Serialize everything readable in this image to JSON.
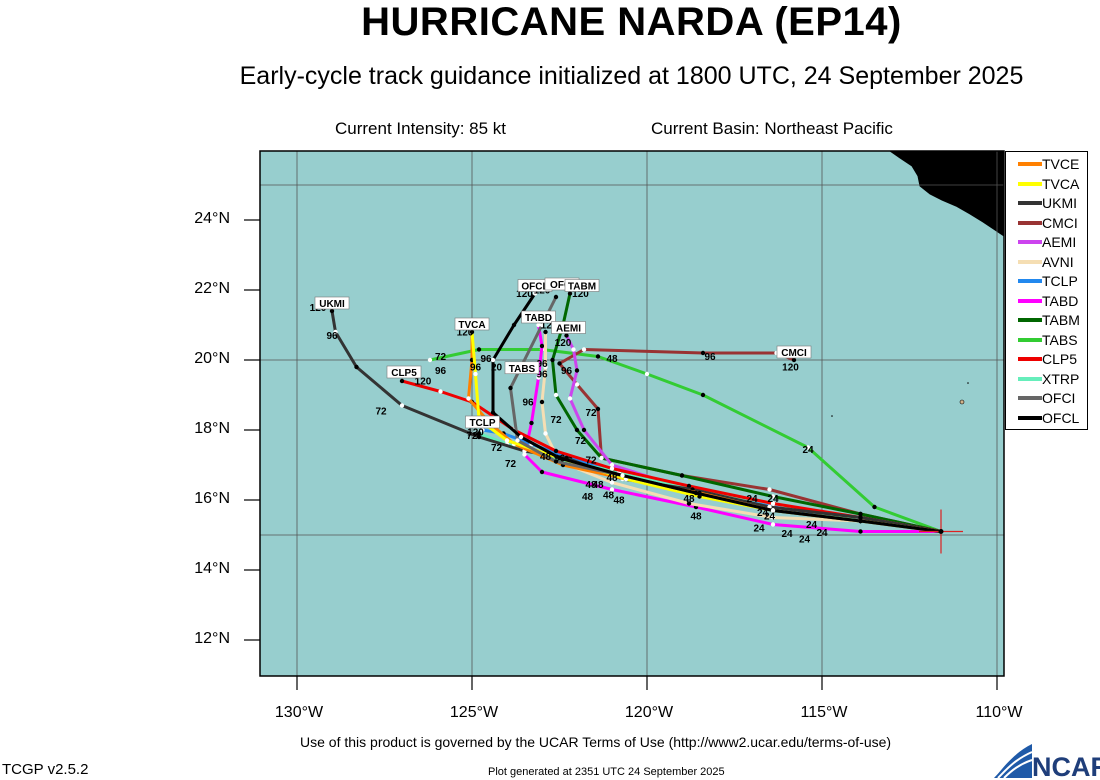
{
  "header": {
    "title": "HURRICANE NARDA (EP14)",
    "subtitle": "Early-cycle track guidance initialized at 1800 UTC, 24 September 2025",
    "intensity": "Current Intensity: 85 kt",
    "basin": "Current Basin: Northeast Pacific"
  },
  "axes": {
    "lat_labels": [
      "24°N",
      "22°N",
      "20°N",
      "18°N",
      "16°N",
      "14°N",
      "12°N"
    ],
    "lon_labels": [
      "130°W",
      "125°W",
      "120°W",
      "115°W",
      "110°W"
    ]
  },
  "colors": {
    "ocean": "#97cece",
    "land": "#d2b48c",
    "TVCE": "#ff8000",
    "TVCA": "#ffff00",
    "UKMI": "#333333",
    "CMCI": "#993333",
    "AEMI": "#cc44ee",
    "AVNI": "#f5deb3",
    "TCLP": "#2288ee",
    "TABD": "#ff00ff",
    "TABM": "#006600",
    "TABS": "#33cc33",
    "CLP5": "#ee0000",
    "XTRP": "#66eebb",
    "OFCI": "#666666",
    "OFCL": "#000000"
  },
  "legend": [
    "TVCE",
    "TVCA",
    "UKMI",
    "CMCI",
    "AEMI",
    "AVNI",
    "TCLP",
    "TABD",
    "TABM",
    "TABS",
    "CLP5",
    "XTRP",
    "OFCI",
    "OFCL"
  ],
  "storm_position": {
    "lat": 15.1,
    "lon": -111.6
  },
  "end_labels": [
    {
      "text": "UKMI",
      "model": "UKMI"
    },
    {
      "text": "TVCA",
      "model": "TVCA"
    },
    {
      "text": "OFCL",
      "model": "OFCL"
    },
    {
      "text": "OFCI",
      "model": "OFCI"
    },
    {
      "text": "TABM",
      "model": "TABM"
    },
    {
      "text": "TABD",
      "model": "TABD"
    },
    {
      "text": "AEMI",
      "model": "AEMI"
    },
    {
      "text": "TABS",
      "model": "TABS"
    },
    {
      "text": "CMCI",
      "model": "CMCI"
    },
    {
      "text": "CLP5",
      "model": "CLP5"
    },
    {
      "text": "TCLP",
      "model": "TCLP"
    }
  ],
  "tracks": [
    {
      "model": "TABS",
      "points": [
        [
          -111.6,
          15.1
        ],
        [
          -113.5,
          15.8
        ],
        [
          -115.4,
          17.5
        ],
        [
          -118.4,
          19.0
        ],
        [
          -120.0,
          19.6
        ],
        [
          -121.4,
          20.1
        ],
        [
          -123.0,
          20.3
        ],
        [
          -124.8,
          20.3
        ],
        [
          -126.2,
          20.0
        ]
      ]
    },
    {
      "model": "CMCI",
      "points": [
        [
          -111.6,
          15.1
        ],
        [
          -113.9,
          15.6
        ],
        [
          -116.5,
          16.3
        ],
        [
          -119.0,
          16.7
        ],
        [
          -121.3,
          17.2
        ],
        [
          -121.4,
          18.6
        ],
        [
          -122.0,
          19.3
        ],
        [
          -122.5,
          19.9
        ],
        [
          -121.8,
          20.3
        ],
        [
          -118.4,
          20.2
        ],
        [
          -116.3,
          20.2
        ],
        [
          -115.8,
          20.0
        ]
      ]
    },
    {
      "model": "TABM",
      "points": [
        [
          -111.6,
          15.1
        ],
        [
          -113.9,
          15.6
        ],
        [
          -116.4,
          16.1
        ],
        [
          -119.0,
          16.7
        ],
        [
          -121.3,
          17.2
        ],
        [
          -122.0,
          18.0
        ],
        [
          -122.6,
          19.0
        ],
        [
          -122.7,
          20.0
        ],
        [
          -122.4,
          21.0
        ],
        [
          -122.2,
          21.9
        ]
      ]
    },
    {
      "model": "AEMI",
      "points": [
        [
          -111.6,
          15.1
        ],
        [
          -113.9,
          15.5
        ],
        [
          -116.4,
          15.8
        ],
        [
          -118.8,
          16.3
        ],
        [
          -121.0,
          17.0
        ],
        [
          -121.8,
          18.0
        ],
        [
          -122.2,
          18.9
        ],
        [
          -122.0,
          19.7
        ],
        [
          -122.1,
          20.3
        ],
        [
          -122.3,
          20.7
        ]
      ]
    },
    {
      "model": "TABD",
      "points": [
        [
          -111.6,
          15.1
        ],
        [
          -113.9,
          15.1
        ],
        [
          -116.4,
          15.3
        ],
        [
          -118.6,
          15.8
        ],
        [
          -121.0,
          16.3
        ],
        [
          -123.0,
          16.8
        ],
        [
          -123.5,
          17.3
        ],
        [
          -123.3,
          18.2
        ],
        [
          -123.1,
          19.5
        ],
        [
          -123.0,
          20.4
        ],
        [
          -123.1,
          21.0
        ]
      ]
    },
    {
      "model": "AVNI",
      "points": [
        [
          -111.6,
          15.1
        ],
        [
          -113.9,
          15.4
        ],
        [
          -116.4,
          15.5
        ],
        [
          -118.8,
          15.9
        ],
        [
          -121.0,
          16.5
        ],
        [
          -122.5,
          17.1
        ],
        [
          -122.9,
          17.9
        ],
        [
          -123.0,
          18.8
        ],
        [
          -122.9,
          19.8
        ],
        [
          -122.9,
          20.8
        ]
      ]
    },
    {
      "model": "TCLP",
      "points": [
        [
          -111.6,
          15.1
        ],
        [
          -113.9,
          15.4
        ],
        [
          -116.4,
          15.8
        ],
        [
          -118.7,
          16.3
        ],
        [
          -120.6,
          16.7
        ],
        [
          -122.2,
          17.2
        ],
        [
          -123.3,
          17.6
        ],
        [
          -124.1,
          17.9
        ],
        [
          -124.7,
          18.0
        ]
      ]
    },
    {
      "model": "XTRP",
      "points": [
        [
          -111.6,
          15.1
        ],
        [
          -113.9,
          15.4
        ],
        [
          -116.4,
          15.9
        ],
        [
          -118.6,
          16.3
        ],
        [
          -120.8,
          16.8
        ],
        [
          -122.8,
          17.2
        ],
        [
          -124.0,
          17.6
        ],
        [
          -124.8,
          17.9
        ]
      ]
    },
    {
      "model": "CLP5",
      "points": [
        [
          -111.6,
          15.1
        ],
        [
          -113.9,
          15.5
        ],
        [
          -116.4,
          15.9
        ],
        [
          -118.8,
          16.4
        ],
        [
          -121.0,
          16.9
        ],
        [
          -122.6,
          17.4
        ],
        [
          -123.8,
          18.0
        ],
        [
          -125.0,
          18.8
        ],
        [
          -125.9,
          19.1
        ],
        [
          -127.0,
          19.4
        ]
      ]
    },
    {
      "model": "UKMI",
      "points": [
        [
          -111.6,
          15.1
        ],
        [
          -113.9,
          15.5
        ],
        [
          -116.5,
          15.8
        ],
        [
          -118.7,
          16.3
        ],
        [
          -120.7,
          16.6
        ],
        [
          -122.3,
          17.2
        ],
        [
          -123.5,
          17.4
        ],
        [
          -124.8,
          17.8
        ],
        [
          -127.0,
          18.7
        ],
        [
          -128.3,
          19.8
        ],
        [
          -128.9,
          20.8
        ],
        [
          -129.0,
          21.4
        ]
      ]
    },
    {
      "model": "TVCE",
      "points": [
        [
          -111.6,
          15.1
        ],
        [
          -113.9,
          15.4
        ],
        [
          -116.4,
          15.7
        ],
        [
          -118.5,
          16.2
        ],
        [
          -120.6,
          16.6
        ],
        [
          -122.4,
          17.0
        ],
        [
          -123.8,
          17.6
        ],
        [
          -124.5,
          18.2
        ],
        [
          -125.1,
          18.9
        ],
        [
          -125.0,
          20.0
        ],
        [
          -125.0,
          20.9
        ]
      ]
    },
    {
      "model": "TVCA",
      "points": [
        [
          -111.6,
          15.1
        ],
        [
          -113.9,
          15.4
        ],
        [
          -116.4,
          15.7
        ],
        [
          -118.5,
          16.1
        ],
        [
          -120.6,
          16.6
        ],
        [
          -122.5,
          17.2
        ],
        [
          -124.0,
          17.7
        ],
        [
          -124.8,
          18.3
        ],
        [
          -124.9,
          19.6
        ],
        [
          -125.0,
          20.8
        ]
      ]
    },
    {
      "model": "OFCI",
      "points": [
        [
          -111.6,
          15.1
        ],
        [
          -113.9,
          15.4
        ],
        [
          -116.4,
          15.7
        ],
        [
          -118.6,
          16.2
        ],
        [
          -120.7,
          16.7
        ],
        [
          -122.6,
          17.1
        ],
        [
          -123.7,
          17.7
        ],
        [
          -123.9,
          19.2
        ],
        [
          -123.0,
          21.0
        ],
        [
          -122.6,
          21.8
        ]
      ]
    },
    {
      "model": "OFCL",
      "points": [
        [
          -111.6,
          15.1
        ],
        [
          -113.9,
          15.4
        ],
        [
          -116.4,
          15.7
        ],
        [
          -118.6,
          16.2
        ],
        [
          -120.7,
          16.7
        ],
        [
          -122.5,
          17.2
        ],
        [
          -123.6,
          17.8
        ],
        [
          -124.4,
          18.5
        ],
        [
          -124.4,
          20.0
        ],
        [
          -123.8,
          21.0
        ],
        [
          -123.2,
          21.9
        ]
      ]
    }
  ],
  "hour_labels": [
    {
      "text": "24",
      "lon": -115.4,
      "lat": 17.35
    },
    {
      "text": "24",
      "lon": -115.3,
      "lat": 15.2
    },
    {
      "text": "24",
      "lon": -115.5,
      "lat": 14.78
    },
    {
      "text": "24",
      "lon": -115.0,
      "lat": 14.97
    },
    {
      "text": "24",
      "lon": -116.0,
      "lat": 14.95
    },
    {
      "text": "24",
      "lon": -116.8,
      "lat": 15.1
    },
    {
      "text": "24",
      "lon": -116.5,
      "lat": 15.45
    },
    {
      "text": "24",
      "lon": -117.0,
      "lat": 15.95
    },
    {
      "text": "24",
      "lon": -116.4,
      "lat": 15.95
    },
    {
      "text": "24",
      "lon": -116.7,
      "lat": 15.55
    },
    {
      "text": "48",
      "lon": -118.6,
      "lat": 15.45
    },
    {
      "text": "48",
      "lon": -118.8,
      "lat": 15.95
    },
    {
      "text": "48",
      "lon": -120.8,
      "lat": 15.9
    },
    {
      "text": "48",
      "lon": -121.6,
      "lat": 16.35
    },
    {
      "text": "48",
      "lon": -121.7,
      "lat": 16.0
    },
    {
      "text": "48",
      "lon": -121.4,
      "lat": 16.35
    },
    {
      "text": "48",
      "lon": -121.0,
      "lat": 16.55
    },
    {
      "text": "48",
      "lon": -121.1,
      "lat": 16.05
    },
    {
      "text": "48",
      "lon": -121.0,
      "lat": 19.95
    },
    {
      "text": "48",
      "lon": -122.9,
      "lat": 17.15
    },
    {
      "text": "72",
      "lon": -123.9,
      "lat": 16.95
    },
    {
      "text": "72",
      "lon": -124.3,
      "lat": 17.4
    },
    {
      "text": "72",
      "lon": -125.0,
      "lat": 17.75
    },
    {
      "text": "72",
      "lon": -122.6,
      "lat": 18.2
    },
    {
      "text": "72",
      "lon": -121.6,
      "lat": 17.05
    },
    {
      "text": "72",
      "lon": -121.9,
      "lat": 17.6
    },
    {
      "text": "72",
      "lon": -121.6,
      "lat": 18.4
    },
    {
      "text": "72",
      "lon": -127.6,
      "lat": 18.45
    },
    {
      "text": "72",
      "lon": -125.9,
      "lat": 20.0
    },
    {
      "text": "96",
      "lon": -122.5,
      "lat": 17.1
    },
    {
      "text": "96",
      "lon": -123.4,
      "lat": 18.7
    },
    {
      "text": "96",
      "lon": -122.3,
      "lat": 19.6
    },
    {
      "text": "96",
      "lon": -123.0,
      "lat": 19.5
    },
    {
      "text": "96",
      "lon": -123.0,
      "lat": 19.8
    },
    {
      "text": "96",
      "lon": -124.9,
      "lat": 19.7
    },
    {
      "text": "96",
      "lon": -125.9,
      "lat": 19.6
    },
    {
      "text": "96",
      "lon": -124.6,
      "lat": 19.95
    },
    {
      "text": "96",
      "lon": -129.0,
      "lat": 20.6
    },
    {
      "text": "96",
      "lon": -118.2,
      "lat": 20.0
    },
    {
      "text": "120",
      "lon": -129.4,
      "lat": 21.4
    },
    {
      "text": "120",
      "lon": -125.2,
      "lat": 20.7
    },
    {
      "text": "120",
      "lon": -123.5,
      "lat": 21.8
    },
    {
      "text": "120",
      "lon": -123.0,
      "lat": 21.9
    },
    {
      "text": "120",
      "lon": -121.9,
      "lat": 21.8
    },
    {
      "text": "120",
      "lon": -122.4,
      "lat": 20.4
    },
    {
      "text": "120",
      "lon": -122.8,
      "lat": 20.9
    },
    {
      "text": "120",
      "lon": -126.4,
      "lat": 19.3
    },
    {
      "text": "120",
      "lon": -115.9,
      "lat": 19.7
    },
    {
      "text": "20",
      "lon": -124.3,
      "lat": 19.7
    },
    {
      "text": "120",
      "lon": -124.9,
      "lat": 17.85
    }
  ],
  "footer": {
    "terms": "Use of this product is governed by the UCAR Terms of Use (http://www2.ucar.edu/terms-of-use)",
    "version": "TCGP v2.5.2",
    "generated": "Plot generated at 2351 UTC   24 September 2025",
    "logo": "NCAR"
  }
}
